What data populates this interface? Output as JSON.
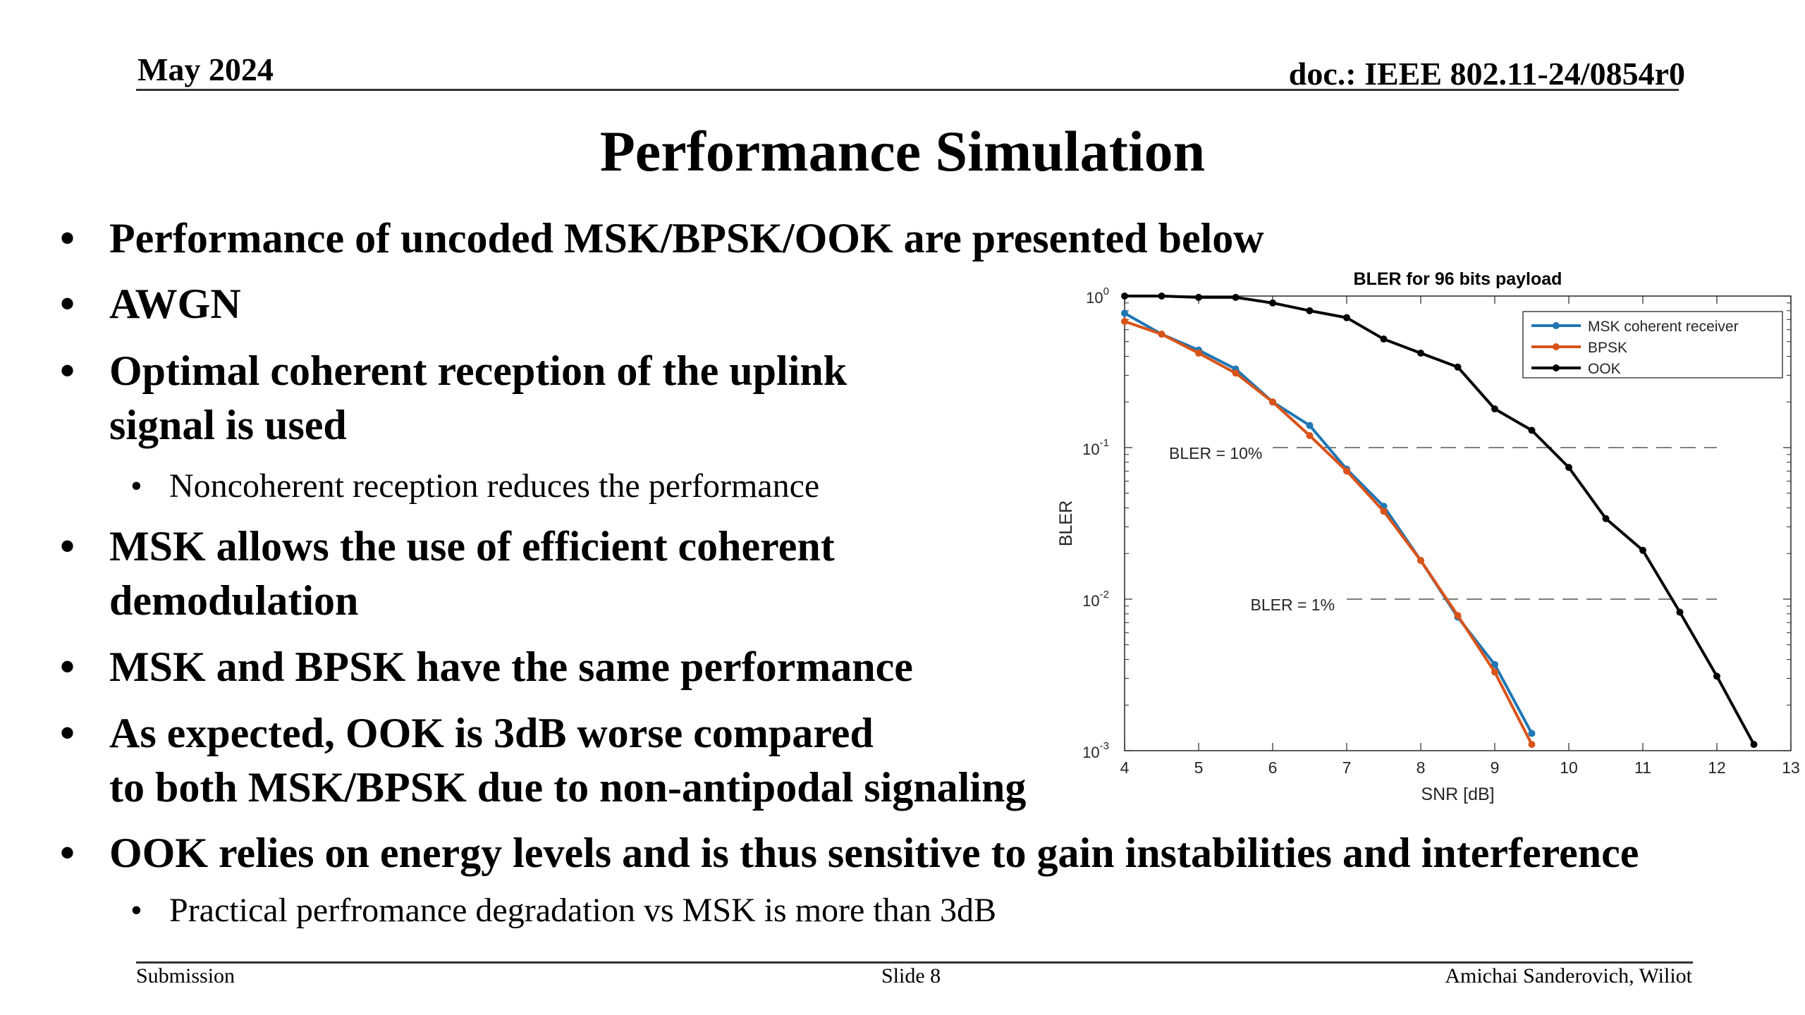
{
  "header": {
    "date": "May 2024",
    "doc": "doc.: IEEE 802.11-24/0854r0"
  },
  "title": "Performance Simulation",
  "bullets": [
    {
      "lines": [
        "Performance of uncoded MSK/BPSK/OOK are presented below"
      ]
    },
    {
      "lines": [
        "AWGN"
      ]
    },
    {
      "lines": [
        "Optimal coherent reception of the uplink",
        "signal is used"
      ]
    },
    {
      "lines": [
        "MSK allows the use of efficient coherent",
        "demodulation"
      ]
    },
    {
      "lines": [
        "MSK and BPSK have the same performance"
      ]
    },
    {
      "lines": [
        "As expected, OOK is 3dB worse compared",
        "to both MSK/BPSK due to non-antipodal signaling"
      ]
    },
    {
      "lines": [
        "OOK relies on energy levels and is thus sensitive to gain instabilities and interference"
      ]
    }
  ],
  "subbullets": [
    "Noncoherent reception reduces the performance",
    "Practical perfromance degradation vs MSK is more than 3dB"
  ],
  "footer": {
    "left": "Submission",
    "center": "Slide 8",
    "right": "Amichai Sanderovich, Wiliot"
  },
  "chart_data": {
    "type": "line",
    "title": "BLER for 96 bits payload",
    "xlabel": "SNR [dB]",
    "ylabel": "BLER",
    "xlim": [
      4,
      13
    ],
    "ylim": [
      0.001,
      1
    ],
    "yscale": "log",
    "x_ticks": [
      "4",
      "5",
      "6",
      "7",
      "8",
      "9",
      "10",
      "11",
      "12",
      "13"
    ],
    "y_ticks": [
      {
        "base": "10",
        "exp": "0",
        "value": 1
      },
      {
        "base": "10",
        "exp": "-1",
        "value": 0.1
      },
      {
        "base": "10",
        "exp": "-2",
        "value": 0.01
      },
      {
        "base": "10",
        "exp": "-3",
        "value": 0.001
      }
    ],
    "legend_position": "top-right",
    "series": [
      {
        "name": "MSK coherent receiver",
        "color": "#1f77b4",
        "x": [
          4,
          4.5,
          5,
          5.5,
          6,
          6.5,
          7,
          7.5,
          8,
          8.5,
          9,
          9.5
        ],
        "y": [
          0.77,
          0.56,
          0.44,
          0.33,
          0.2,
          0.14,
          0.072,
          0.041,
          0.018,
          0.0076,
          0.0037,
          0.0013
        ]
      },
      {
        "name": "BPSK",
        "color": "#d95319",
        "x": [
          4,
          4.5,
          5,
          5.5,
          6,
          6.5,
          7,
          7.5,
          8,
          8.5,
          9,
          9.5
        ],
        "y": [
          0.68,
          0.56,
          0.42,
          0.31,
          0.2,
          0.12,
          0.07,
          0.038,
          0.018,
          0.0078,
          0.0033,
          0.0011
        ]
      },
      {
        "name": "OOK",
        "color": "#000000",
        "x": [
          4,
          4.5,
          5,
          5.5,
          6,
          6.5,
          7,
          7.5,
          8,
          8.5,
          9,
          9.5,
          10,
          10.5,
          11,
          11.5,
          12,
          12.5
        ],
        "y": [
          1.0,
          1.0,
          0.98,
          0.98,
          0.9,
          0.8,
          0.72,
          0.52,
          0.42,
          0.34,
          0.18,
          0.13,
          0.074,
          0.034,
          0.021,
          0.0082,
          0.0031,
          0.0011
        ]
      }
    ],
    "reference_lines": [
      {
        "label": "BLER = 10%",
        "y": 0.1,
        "x_start": 6,
        "x_end": 12,
        "label_x": 4.6
      },
      {
        "label": "BLER = 1%",
        "y": 0.01,
        "x_start": 7,
        "x_end": 12,
        "label_x": 5.7
      }
    ]
  }
}
